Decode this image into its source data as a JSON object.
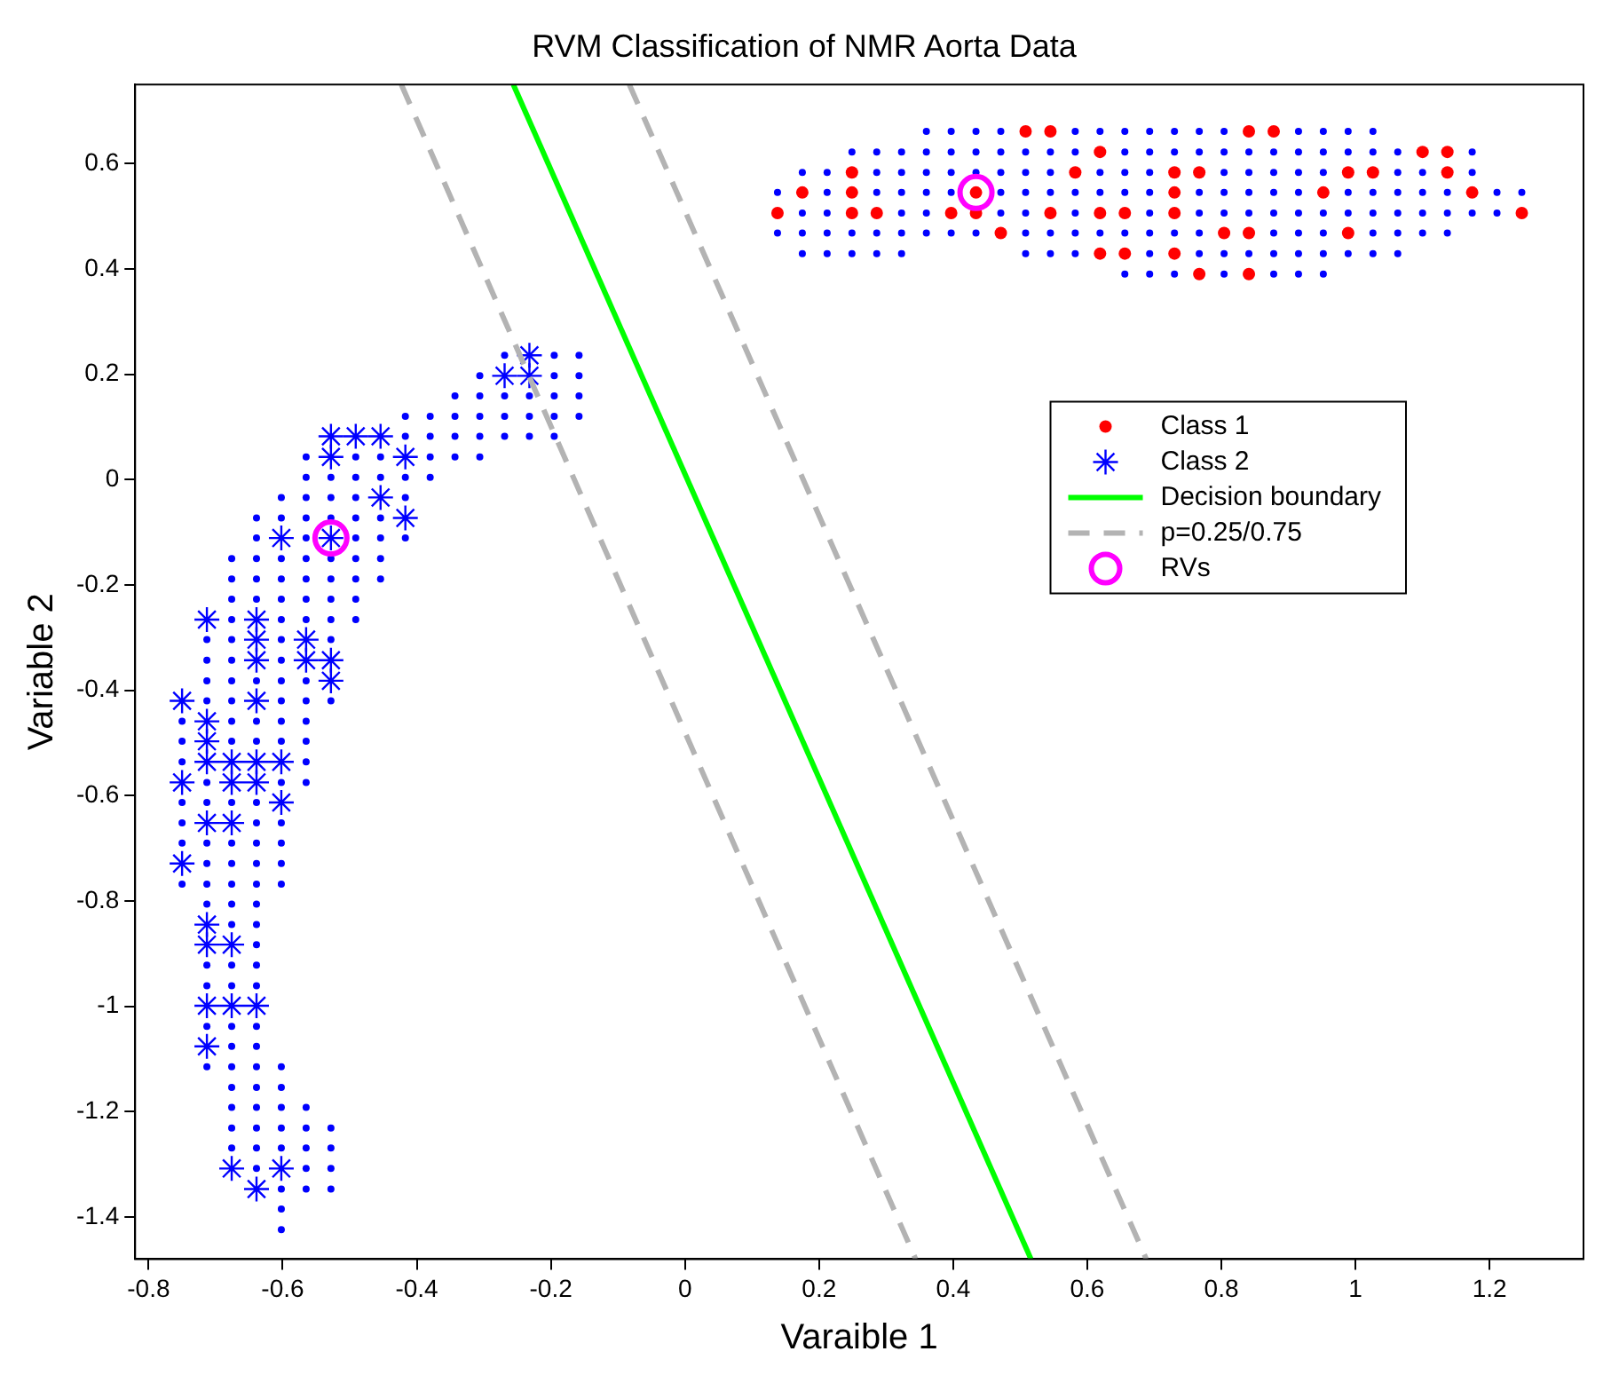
{
  "chart_data": {
    "type": "scatter",
    "title": "RVM Classification of NMR Aorta Data",
    "xlabel": "Varaible 1",
    "ylabel": "Variable 2",
    "xlim": [
      -0.82,
      1.34
    ],
    "ylim": [
      -1.48,
      0.75
    ],
    "xticks": [
      -0.8,
      -0.6,
      -0.4,
      -0.2,
      0,
      0.2,
      0.4,
      0.6,
      0.8,
      1,
      1.2
    ],
    "yticks": [
      -1.4,
      -1.2,
      -1,
      -0.8,
      -0.6,
      -0.4,
      -0.2,
      0,
      0.2,
      0.4,
      0.6
    ],
    "grid": false,
    "legend": "right",
    "series": [
      {
        "marker": "circle",
        "color": "#0000ff",
        "x": [
          -0.269,
          -0.195,
          -0.158,
          -0.306,
          -0.195,
          -0.158,
          -0.343,
          -0.306,
          -0.269,
          -0.232,
          -0.195,
          -0.158,
          -0.417,
          -0.38,
          -0.343,
          -0.306,
          -0.269,
          -0.232,
          -0.195,
          -0.158,
          -0.417,
          -0.38,
          -0.343,
          -0.306,
          -0.269,
          -0.232,
          -0.195,
          -0.565,
          -0.491,
          -0.454,
          -0.38,
          -0.343,
          -0.306,
          -0.565,
          -0.528,
          -0.491,
          -0.454,
          -0.417,
          -0.38,
          -0.602,
          -0.565,
          -0.528,
          -0.491,
          -0.417,
          -0.639,
          -0.602,
          -0.565,
          -0.528,
          -0.491,
          -0.454,
          -0.639,
          -0.565,
          -0.491,
          -0.454,
          -0.417,
          -0.676,
          -0.639,
          -0.602,
          -0.565,
          -0.528,
          -0.491,
          -0.454,
          -0.676,
          -0.639,
          -0.602,
          -0.565,
          -0.528,
          -0.491,
          -0.454,
          -0.676,
          -0.639,
          -0.602,
          -0.565,
          -0.528,
          -0.491,
          -0.676,
          -0.602,
          -0.565,
          -0.528,
          -0.491,
          -0.713,
          -0.676,
          -0.602,
          -0.528,
          -0.713,
          -0.676,
          -0.602,
          -0.713,
          -0.676,
          -0.639,
          -0.602,
          -0.565,
          -0.713,
          -0.676,
          -0.602,
          -0.565,
          -0.528,
          -0.75,
          -0.676,
          -0.639,
          -0.602,
          -0.565,
          -0.75,
          -0.676,
          -0.639,
          -0.602,
          -0.565,
          -0.75,
          -0.565,
          -0.713,
          -0.602,
          -0.565,
          -0.75,
          -0.713,
          -0.676,
          -0.639,
          -0.75,
          -0.639,
          -0.602,
          -0.75,
          -0.713,
          -0.676,
          -0.639,
          -0.602,
          -0.713,
          -0.676,
          -0.639,
          -0.602,
          -0.75,
          -0.713,
          -0.676,
          -0.639,
          -0.602,
          -0.713,
          -0.676,
          -0.639,
          -0.676,
          -0.639,
          -0.639,
          -0.713,
          -0.676,
          -0.639,
          -0.713,
          -0.676,
          -0.639,
          -0.713,
          -0.676,
          -0.639,
          -0.676,
          -0.639,
          -0.713,
          -0.676,
          -0.639,
          -0.602,
          -0.676,
          -0.639,
          -0.602,
          -0.676,
          -0.639,
          -0.602,
          -0.565,
          -0.676,
          -0.639,
          -0.602,
          -0.565,
          -0.528,
          -0.676,
          -0.639,
          -0.602,
          -0.565,
          -0.528,
          -0.639,
          -0.565,
          -0.528,
          -0.602,
          -0.565,
          -0.528,
          -0.602,
          -0.602,
          0.36,
          0.397,
          0.434,
          0.471,
          0.582,
          0.619,
          0.656,
          0.693,
          0.73,
          0.767,
          0.804,
          0.915,
          0.952,
          0.989,
          1.026,
          0.249,
          0.286,
          0.323,
          0.36,
          0.397,
          0.434,
          0.471,
          0.508,
          0.545,
          0.582,
          0.656,
          0.693,
          0.73,
          0.767,
          0.804,
          0.841,
          0.878,
          0.915,
          0.952,
          0.989,
          1.026,
          1.063,
          1.174,
          0.175,
          0.212,
          0.286,
          0.323,
          0.36,
          0.397,
          0.434,
          0.471,
          0.508,
          0.545,
          0.619,
          0.656,
          0.693,
          0.804,
          0.841,
          0.878,
          0.915,
          0.952,
          1.063,
          1.1,
          1.174,
          0.138,
          0.212,
          0.286,
          0.323,
          0.36,
          0.397,
          0.471,
          0.508,
          0.545,
          0.582,
          0.619,
          0.656,
          0.693,
          0.767,
          0.804,
          0.841,
          0.878,
          0.915,
          0.989,
          1.026,
          1.063,
          1.1,
          1.137,
          1.211,
          1.248,
          0.175,
          0.212,
          0.323,
          0.36,
          0.471,
          0.508,
          0.582,
          0.693,
          0.767,
          0.804,
          0.841,
          0.878,
          0.915,
          0.952,
          0.989,
          1.026,
          1.063,
          1.1,
          1.137,
          1.174,
          1.211,
          0.138,
          0.175,
          0.212,
          0.249,
          0.286,
          0.323,
          0.36,
          0.397,
          0.434,
          0.508,
          0.545,
          0.582,
          0.619,
          0.656,
          0.693,
          0.73,
          0.767,
          0.878,
          0.915,
          0.952,
          1.026,
          1.063,
          1.1,
          1.137,
          0.175,
          0.212,
          0.249,
          0.286,
          0.323,
          0.508,
          0.545,
          0.582,
          0.693,
          0.767,
          0.804,
          0.841,
          0.878,
          0.915,
          0.952,
          0.989,
          1.026,
          1.063,
          0.656,
          0.693,
          0.73,
          0.804,
          0.878,
          0.915,
          0.952
        ],
        "values": [
          0.236,
          0.236,
          0.236,
          0.197,
          0.197,
          0.197,
          0.159,
          0.159,
          0.159,
          0.159,
          0.159,
          0.159,
          0.12,
          0.12,
          0.12,
          0.12,
          0.12,
          0.12,
          0.12,
          0.12,
          0.082,
          0.082,
          0.082,
          0.082,
          0.082,
          0.082,
          0.082,
          0.043,
          0.043,
          0.043,
          0.043,
          0.043,
          0.043,
          0.004,
          0.004,
          0.004,
          0.004,
          0.004,
          0.004,
          -0.034,
          -0.034,
          -0.034,
          -0.034,
          -0.034,
          -0.073,
          -0.073,
          -0.073,
          -0.073,
          -0.073,
          -0.073,
          -0.111,
          -0.111,
          -0.111,
          -0.111,
          -0.111,
          -0.15,
          -0.15,
          -0.15,
          -0.15,
          -0.15,
          -0.15,
          -0.15,
          -0.189,
          -0.189,
          -0.189,
          -0.189,
          -0.189,
          -0.189,
          -0.189,
          -0.227,
          -0.227,
          -0.227,
          -0.227,
          -0.227,
          -0.227,
          -0.266,
          -0.266,
          -0.266,
          -0.266,
          -0.266,
          -0.304,
          -0.304,
          -0.304,
          -0.304,
          -0.343,
          -0.343,
          -0.343,
          -0.382,
          -0.382,
          -0.382,
          -0.382,
          -0.382,
          -0.42,
          -0.42,
          -0.42,
          -0.42,
          -0.42,
          -0.459,
          -0.459,
          -0.459,
          -0.459,
          -0.459,
          -0.497,
          -0.497,
          -0.497,
          -0.497,
          -0.497,
          -0.536,
          -0.536,
          -0.575,
          -0.575,
          -0.575,
          -0.613,
          -0.613,
          -0.613,
          -0.613,
          -0.652,
          -0.652,
          -0.652,
          -0.69,
          -0.69,
          -0.69,
          -0.69,
          -0.69,
          -0.729,
          -0.729,
          -0.729,
          -0.729,
          -0.768,
          -0.768,
          -0.768,
          -0.768,
          -0.768,
          -0.806,
          -0.806,
          -0.806,
          -0.845,
          -0.845,
          -0.883,
          -0.922,
          -0.922,
          -0.922,
          -0.961,
          -0.961,
          -0.961,
          -1.038,
          -1.038,
          -1.038,
          -1.076,
          -1.076,
          -1.115,
          -1.115,
          -1.115,
          -1.115,
          -1.154,
          -1.154,
          -1.154,
          -1.192,
          -1.192,
          -1.192,
          -1.192,
          -1.231,
          -1.231,
          -1.231,
          -1.231,
          -1.231,
          -1.269,
          -1.269,
          -1.269,
          -1.269,
          -1.269,
          -1.308,
          -1.308,
          -1.308,
          -1.347,
          -1.347,
          -1.347,
          -1.385,
          -1.424,
          0.661,
          0.661,
          0.661,
          0.661,
          0.661,
          0.661,
          0.661,
          0.661,
          0.661,
          0.661,
          0.661,
          0.661,
          0.661,
          0.661,
          0.661,
          0.622,
          0.622,
          0.622,
          0.622,
          0.622,
          0.622,
          0.622,
          0.622,
          0.622,
          0.622,
          0.622,
          0.622,
          0.622,
          0.622,
          0.622,
          0.622,
          0.622,
          0.622,
          0.622,
          0.622,
          0.622,
          0.622,
          0.622,
          0.583,
          0.583,
          0.583,
          0.583,
          0.583,
          0.583,
          0.583,
          0.583,
          0.583,
          0.583,
          0.583,
          0.583,
          0.583,
          0.583,
          0.583,
          0.583,
          0.583,
          0.583,
          0.583,
          0.583,
          0.583,
          0.545,
          0.545,
          0.545,
          0.545,
          0.545,
          0.545,
          0.545,
          0.545,
          0.545,
          0.545,
          0.545,
          0.545,
          0.545,
          0.545,
          0.545,
          0.545,
          0.545,
          0.545,
          0.545,
          0.545,
          0.545,
          0.545,
          0.545,
          0.545,
          0.545,
          0.506,
          0.506,
          0.506,
          0.506,
          0.506,
          0.506,
          0.506,
          0.506,
          0.506,
          0.506,
          0.506,
          0.506,
          0.506,
          0.506,
          0.506,
          0.506,
          0.506,
          0.506,
          0.506,
          0.506,
          0.506,
          0.468,
          0.468,
          0.468,
          0.468,
          0.468,
          0.468,
          0.468,
          0.468,
          0.468,
          0.468,
          0.468,
          0.468,
          0.468,
          0.468,
          0.468,
          0.468,
          0.468,
          0.468,
          0.468,
          0.468,
          0.468,
          0.468,
          0.468,
          0.468,
          0.429,
          0.429,
          0.429,
          0.429,
          0.429,
          0.429,
          0.429,
          0.429,
          0.429,
          0.429,
          0.429,
          0.429,
          0.429,
          0.429,
          0.429,
          0.429,
          0.429,
          0.429,
          0.39,
          0.39,
          0.39,
          0.39,
          0.39,
          0.39,
          0.39
        ]
      },
      {
        "name": "Class 1",
        "marker": "circle",
        "color": "#ff0000",
        "x": [
          0.508,
          0.545,
          0.841,
          0.878,
          0.619,
          1.1,
          1.137,
          0.249,
          0.582,
          0.73,
          0.767,
          0.989,
          1.026,
          1.137,
          0.175,
          0.249,
          0.434,
          0.73,
          0.952,
          1.174,
          0.138,
          0.249,
          0.286,
          0.397,
          0.434,
          0.545,
          0.619,
          0.656,
          0.73,
          1.248,
          0.471,
          0.804,
          0.841,
          0.989,
          0.619,
          0.656,
          0.73,
          0.767,
          0.841
        ],
        "values": [
          0.661,
          0.661,
          0.661,
          0.661,
          0.622,
          0.622,
          0.622,
          0.583,
          0.583,
          0.583,
          0.583,
          0.583,
          0.583,
          0.583,
          0.545,
          0.545,
          0.545,
          0.545,
          0.545,
          0.545,
          0.506,
          0.506,
          0.506,
          0.506,
          0.506,
          0.506,
          0.506,
          0.506,
          0.506,
          0.506,
          0.468,
          0.468,
          0.468,
          0.468,
          0.429,
          0.429,
          0.429,
          0.39,
          0.39
        ]
      },
      {
        "name": "Class 2",
        "marker": "cross",
        "color": "#0000ff",
        "x": [
          -0.232,
          -0.269,
          -0.232,
          -0.528,
          -0.491,
          -0.454,
          -0.528,
          -0.417,
          -0.454,
          -0.417,
          -0.602,
          -0.528,
          -0.713,
          -0.639,
          -0.639,
          -0.565,
          -0.639,
          -0.565,
          -0.528,
          -0.528,
          -0.75,
          -0.639,
          -0.713,
          -0.713,
          -0.713,
          -0.676,
          -0.639,
          -0.602,
          -0.75,
          -0.676,
          -0.639,
          -0.602,
          -0.713,
          -0.676,
          -0.75,
          -0.713,
          -0.713,
          -0.676,
          -0.713,
          -0.676,
          -0.639,
          -0.713,
          -0.676,
          -0.602,
          -0.639
        ],
        "values": [
          0.236,
          0.197,
          0.197,
          0.082,
          0.082,
          0.082,
          0.043,
          0.043,
          -0.034,
          -0.073,
          -0.111,
          -0.111,
          -0.266,
          -0.266,
          -0.304,
          -0.304,
          -0.343,
          -0.343,
          -0.343,
          -0.382,
          -0.42,
          -0.42,
          -0.459,
          -0.497,
          -0.536,
          -0.536,
          -0.536,
          -0.536,
          -0.575,
          -0.575,
          -0.575,
          -0.613,
          -0.652,
          -0.652,
          -0.729,
          -0.845,
          -0.883,
          -0.883,
          -0.999,
          -0.999,
          -0.999,
          -1.076,
          -1.308,
          -1.308,
          -1.347
        ]
      },
      {
        "type": "line",
        "name": "Decision boundary",
        "line_style": "solid",
        "color": "#00ff00",
        "x": [
          -0.256,
          0.516
        ],
        "values": [
          0.75,
          -1.48
        ]
      },
      {
        "type": "line",
        "name": "p=0.25/0.75",
        "line_style": "dashed",
        "color": "#b3b3b3",
        "x": [
          -0.423,
          0.344
        ],
        "values": [
          0.75,
          -1.48
        ]
      },
      {
        "type": "line",
        "line_style": "dashed",
        "color": "#b3b3b3",
        "x": [
          -0.083,
          0.688
        ],
        "values": [
          0.75,
          -1.48
        ]
      },
      {
        "name": "RVs",
        "marker": "circle",
        "color": "#ff00ff",
        "x": [
          -0.528,
          0.434
        ],
        "values": [
          -0.111,
          0.545
        ]
      }
    ]
  }
}
